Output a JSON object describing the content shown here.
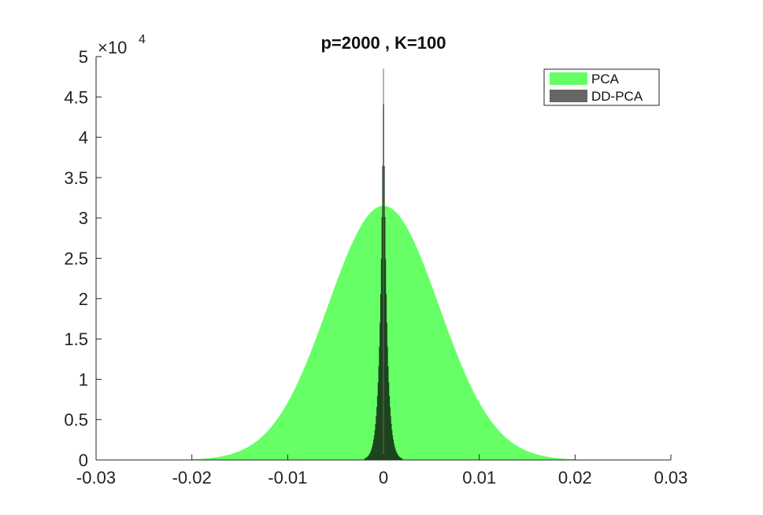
{
  "chart_data": {
    "type": "bar",
    "title": "p=2000 , K=100",
    "xlabel": "",
    "ylabel": "",
    "xlim": [
      -0.03,
      0.03
    ],
    "ylim": [
      0,
      50000
    ],
    "xticks": [
      -0.03,
      -0.02,
      -0.01,
      0,
      0.01,
      0.02,
      0.03
    ],
    "xtick_labels": [
      "-0.03",
      "-0.02",
      "-0.01",
      "0",
      "0.01",
      "0.02",
      "0.03"
    ],
    "yticks": [
      0,
      5000,
      10000,
      15000,
      20000,
      25000,
      30000,
      35000,
      40000,
      45000,
      50000
    ],
    "ytick_labels": [
      "0",
      "0.5",
      "1",
      "1.5",
      "2",
      "2.5",
      "3",
      "3.5",
      "4",
      "4.5",
      "5"
    ],
    "y_exponent_label": {
      "base": "×10",
      "exponent": "4"
    },
    "legend_position": "top-right",
    "grid": false,
    "series": [
      {
        "name": "PCA",
        "color": "#66ff66",
        "distribution": "approximately normal histogram",
        "center": 0,
        "peak_count": 31500,
        "support": [
          -0.02,
          0.02
        ]
      },
      {
        "name": "DD-PCA",
        "color": "#666666",
        "distribution": "sharply peaked histogram",
        "center": 0,
        "peak_count": 48500,
        "support": [
          -0.002,
          0.002
        ]
      }
    ]
  }
}
